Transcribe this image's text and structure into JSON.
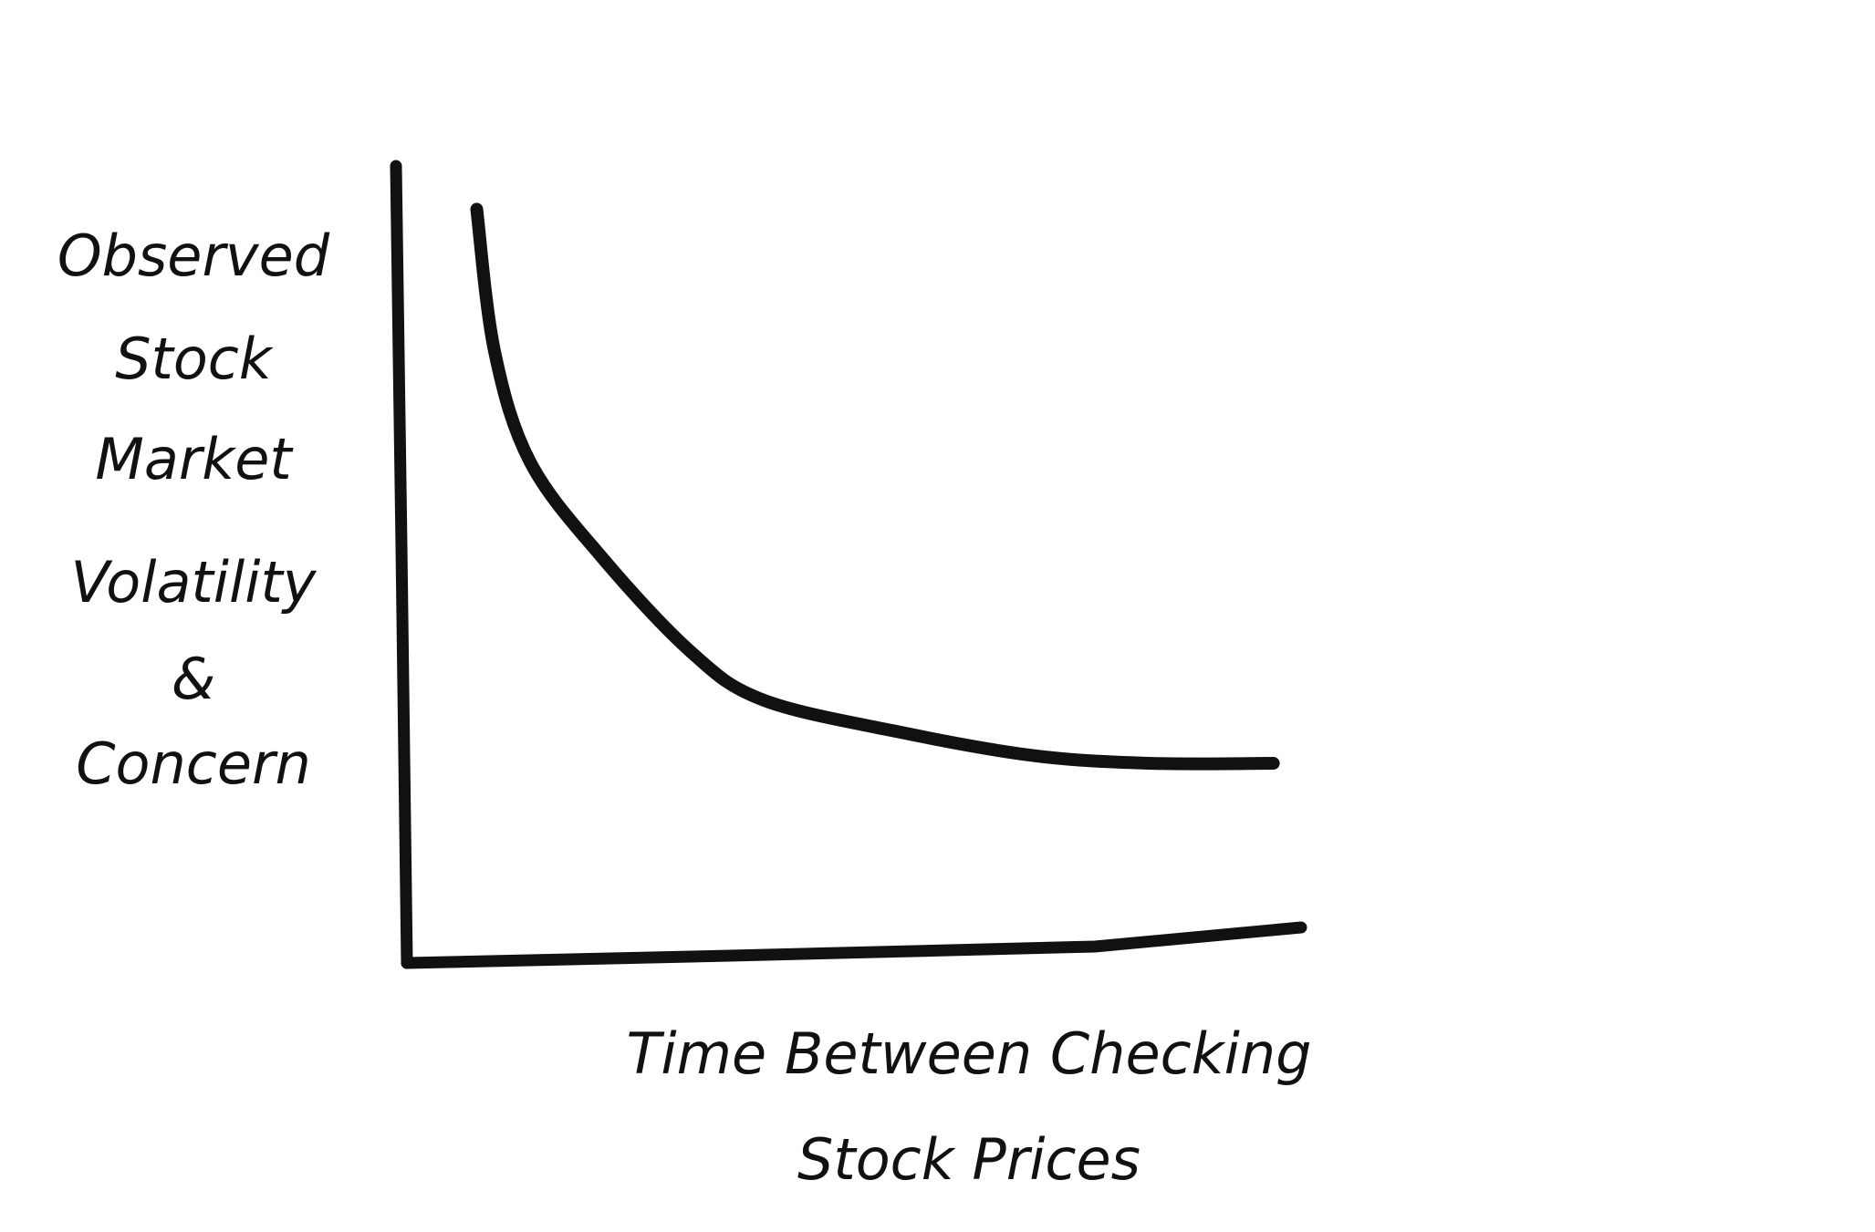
{
  "chart_data": {
    "type": "line",
    "ylabel": [
      "Observed",
      "Stock",
      "Market",
      "Volatility",
      "&",
      "Concern"
    ],
    "xlabel": [
      "Time Between Checking",
      "Stock Prices"
    ],
    "x": [
      0.8,
      1.0,
      1.4,
      2.2,
      3.2,
      4.0,
      5.5,
      7.0,
      8.3,
      9.7
    ],
    "series": [
      {
        "color": "#111111",
        "values": [
          9.5,
          7.7,
          6.3,
          5.1,
          3.9,
          3.3,
          2.9,
          2.6,
          2.5,
          2.5
        ]
      }
    ],
    "xlim": [
      0,
      10
    ],
    "ylim": [
      0,
      10
    ],
    "grid": false
  }
}
